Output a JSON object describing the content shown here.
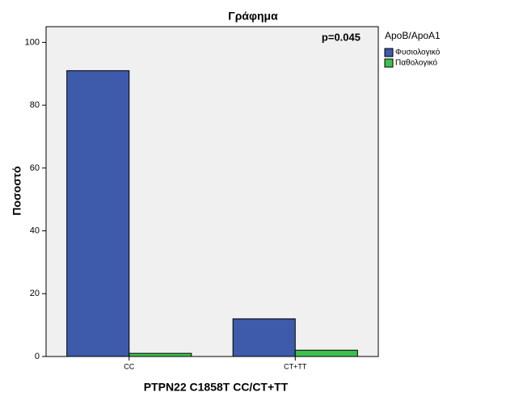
{
  "chart_data": {
    "type": "bar",
    "title": "Γράφημα",
    "x_label": "PTPN22 C1858T CC/CT+TT",
    "y_label": "Ποσοστό",
    "annotation": "p=0.045",
    "legend_title": "ApoB/ApoA1",
    "legend": "right",
    "categories": [
      "CC",
      "CT+TT"
    ],
    "series": [
      {
        "name": "Φυσιολογικό",
        "color": "#3d5aab",
        "values": [
          91,
          12
        ]
      },
      {
        "name": "Παθολογικό",
        "color": "#3ec04f",
        "values": [
          1,
          2
        ]
      }
    ],
    "ylim": [
      0,
      105
    ],
    "yticks": [
      0,
      20,
      40,
      60,
      80,
      100
    ]
  }
}
